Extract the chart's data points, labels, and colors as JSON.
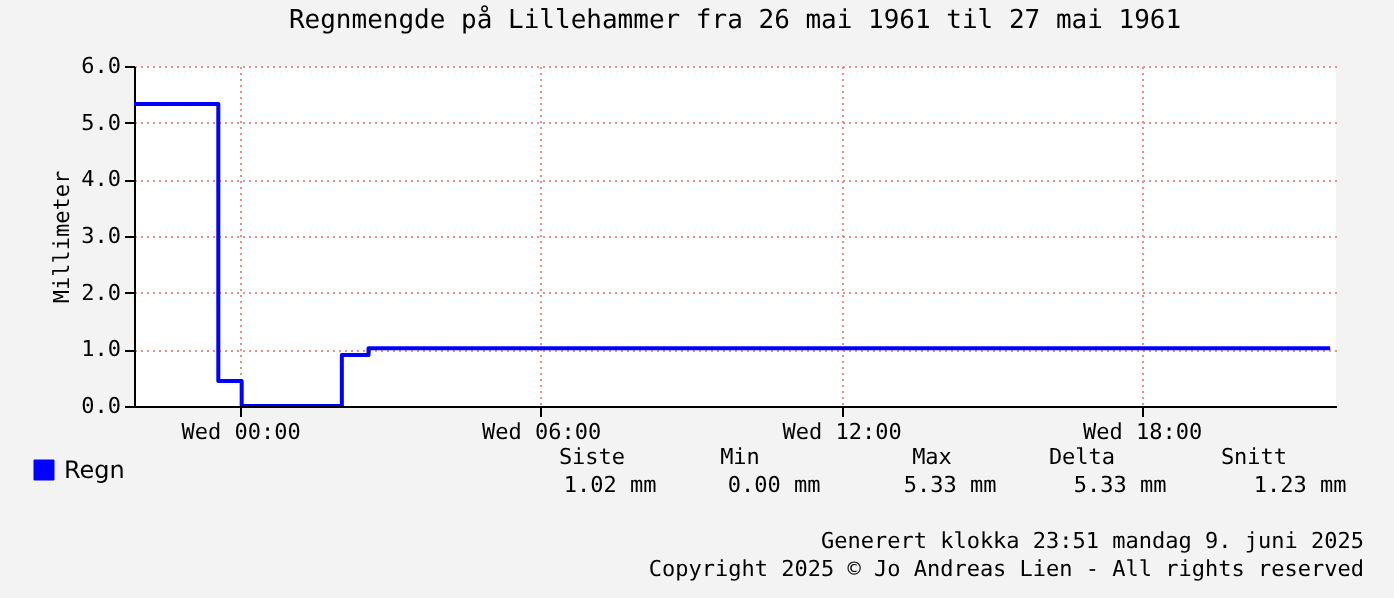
{
  "chart_data": {
    "type": "step",
    "title": "Regnmengde på Lillehammer fra 26 mai 1961 til 27 mai 1961",
    "ylabel": "Millimeter",
    "x": [
      "1961-05-23T21:53",
      "1961-05-23T23:34",
      "1961-05-24T00:02",
      "1961-05-24T02:02",
      "1961-05-24T02:34",
      "1961-05-24T21:46"
    ],
    "series": [
      {
        "name": "Regn",
        "color": "#0000ff",
        "values": [
          5.33,
          0.44,
          0,
          0.9,
          1.02,
          1.02
        ]
      }
    ],
    "xlim": [
      "1961-05-23T21:53",
      "1961-05-24T21:53"
    ],
    "xticks": [
      {
        "value": "1961-05-24T00:00",
        "label": "Wed 00:00"
      },
      {
        "value": "1961-05-24T06:00",
        "label": "Wed 06:00"
      },
      {
        "value": "1961-05-24T12:00",
        "label": "Wed 12:00"
      },
      {
        "value": "1961-05-24T18:00",
        "label": "Wed 18:00"
      }
    ],
    "ylim": [
      0,
      6
    ],
    "yticks": [
      {
        "value": 0,
        "label": "0.0"
      },
      {
        "value": 1,
        "label": "1.0"
      },
      {
        "value": 2,
        "label": "2.0"
      },
      {
        "value": 3,
        "label": "3.0"
      },
      {
        "value": 4,
        "label": "4.0"
      },
      {
        "value": 5,
        "label": "5.0"
      },
      {
        "value": 6,
        "label": "6.0"
      }
    ],
    "grid": true,
    "legend": "bottom left",
    "annotations": [
      "Siste",
      "Min",
      "Max",
      "Delta",
      "Snitt",
      "1.02 mm",
      "0.00 mm",
      "5.33 mm",
      "5.33 mm",
      "1.23 mm",
      "Generert klokka 23:51 mandag 9. juni 2025",
      "Copyright 2025 © Jo Andreas Lien - All rights reserved"
    ]
  }
}
